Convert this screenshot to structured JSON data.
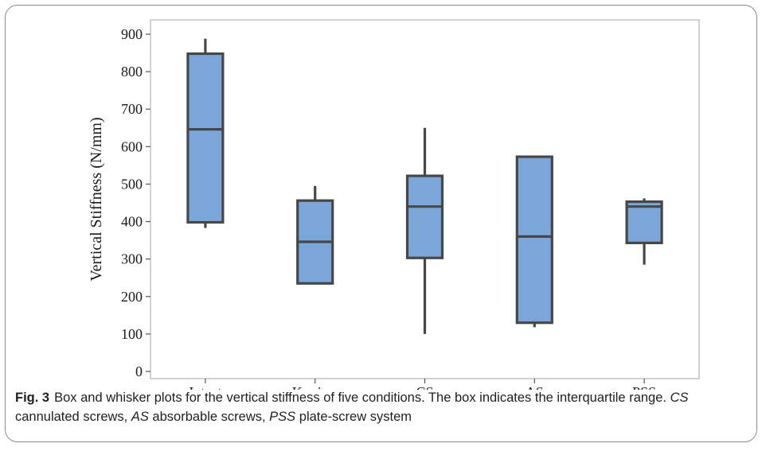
{
  "chart_data": {
    "type": "box",
    "ylabel": "Vertical Stiffness (N/mm)",
    "ylim": [
      0,
      900
    ],
    "yticks": [
      0,
      100,
      200,
      300,
      400,
      500,
      600,
      700,
      800,
      900
    ],
    "categories": [
      "Intact",
      "K-wires",
      "CS",
      "AS",
      "PSS"
    ],
    "boxes": [
      {
        "category": "Intact",
        "min": 383,
        "q1": 398,
        "median": 646,
        "q3": 848,
        "max": 888
      },
      {
        "category": "K-wires",
        "min": 235,
        "q1": 235,
        "median": 346,
        "q3": 456,
        "max": 495
      },
      {
        "category": "CS",
        "min": 100,
        "q1": 303,
        "median": 440,
        "q3": 522,
        "max": 650
      },
      {
        "category": "AS",
        "min": 118,
        "q1": 130,
        "median": 360,
        "q3": 573,
        "max": 576
      },
      {
        "category": "PSS",
        "min": 285,
        "q1": 343,
        "median": 440,
        "q3": 453,
        "max": 462
      }
    ],
    "box_color": "#7aa6da",
    "edge_color": "#474747",
    "grid": false
  },
  "caption": {
    "label": "Fig. 3",
    "text1": "Box and whisker plots for the vertical stiffness of five conditions. The box indicates the interquartile range. ",
    "abbr1": "CS",
    "text2": " cannulated screws, ",
    "abbr2": "AS",
    "text3": " absorbable screws, ",
    "abbr3": "PSS",
    "text4": " plate-screw system"
  }
}
